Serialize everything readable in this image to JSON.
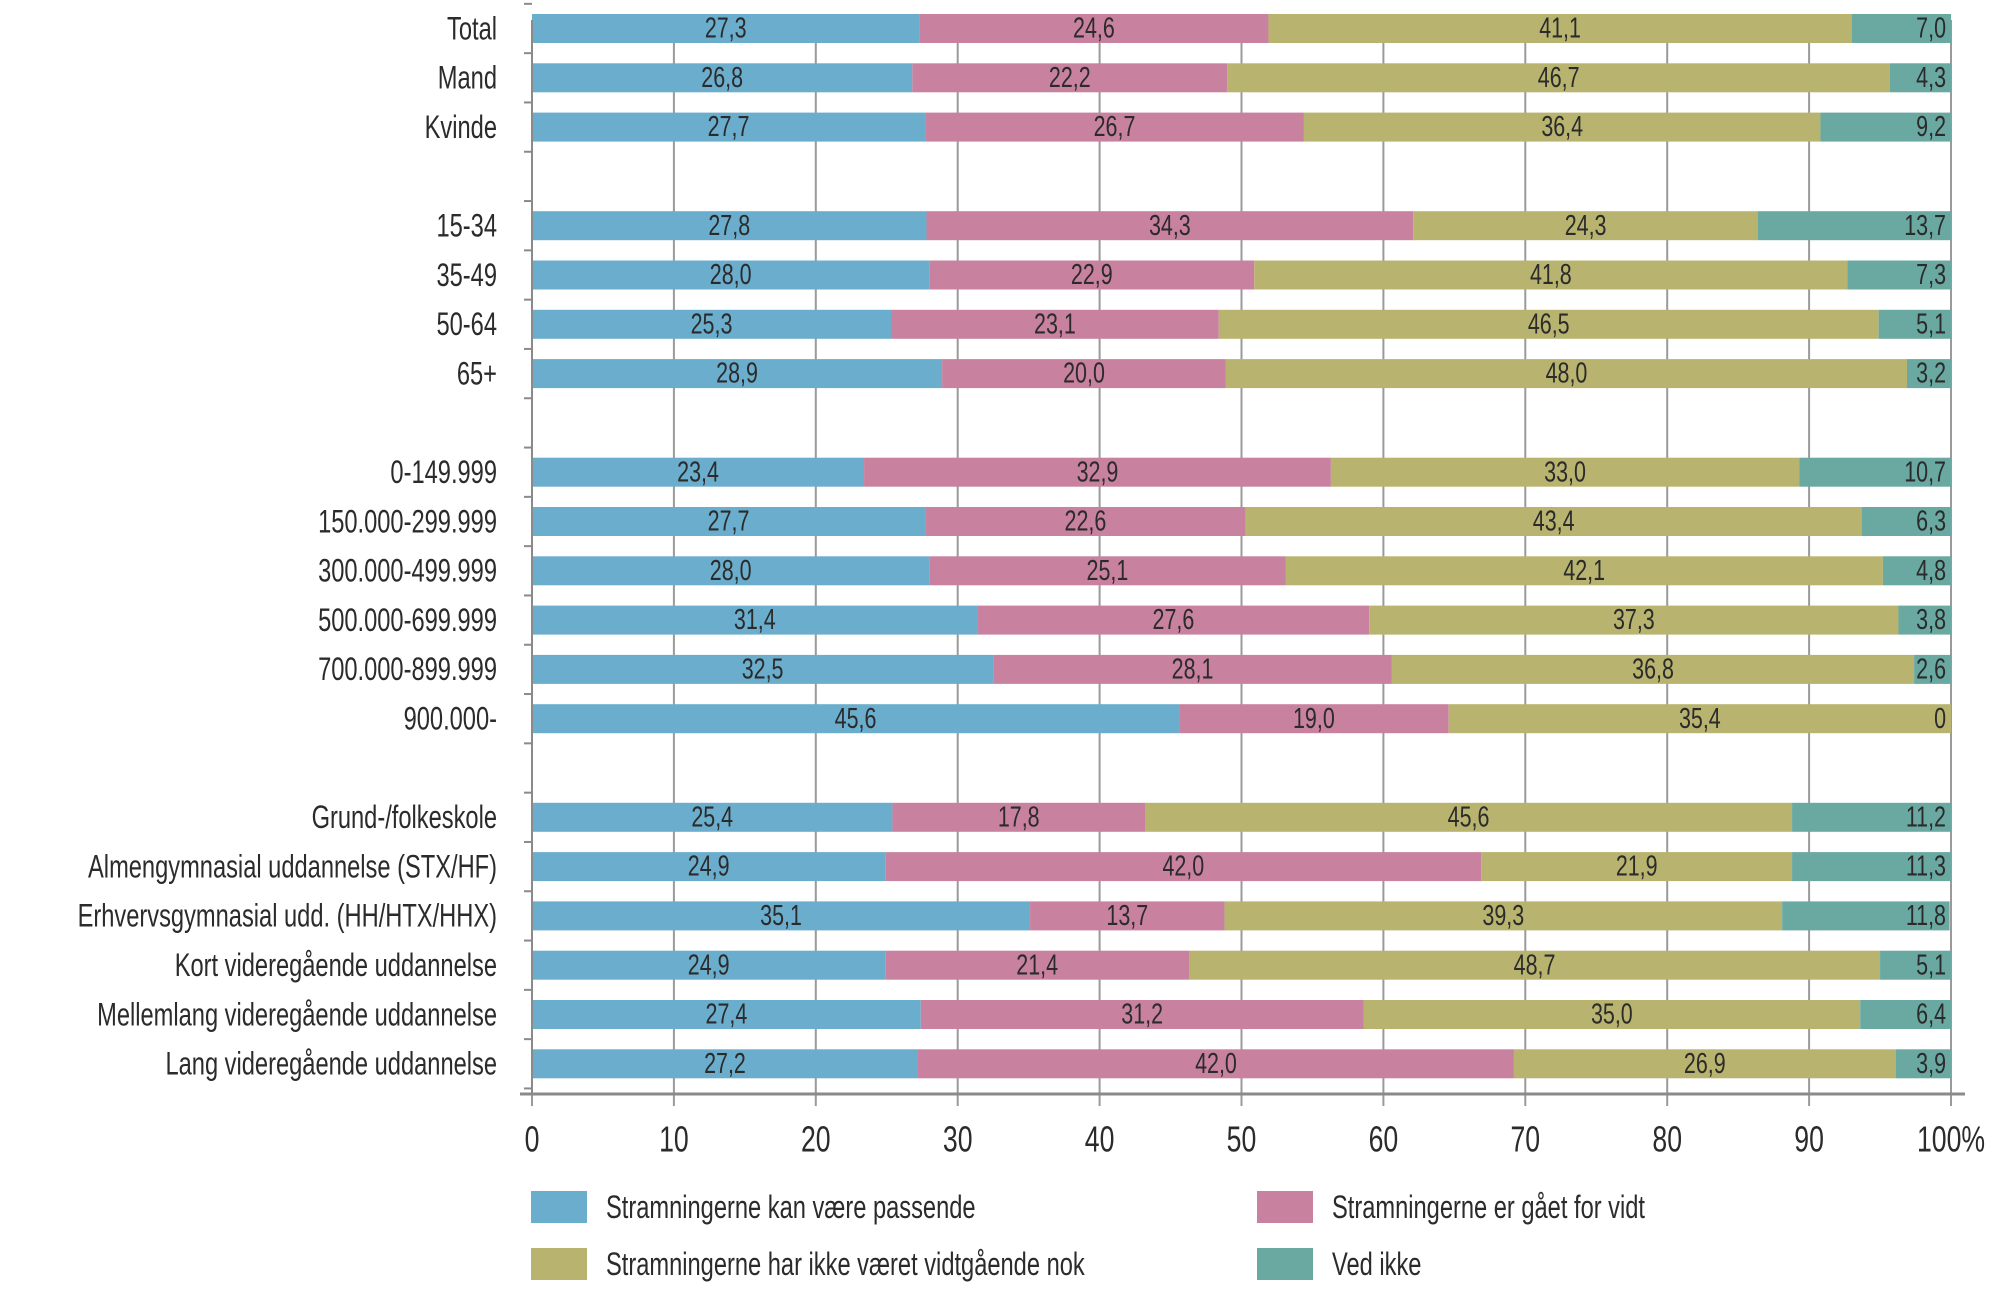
{
  "chart_data": {
    "type": "bar",
    "orientation": "horizontal",
    "stacked": true,
    "title": "",
    "xlabel": "",
    "ylabel": "",
    "xlim": [
      0,
      100
    ],
    "x_ticks": [
      "0",
      "10",
      "20",
      "30",
      "40",
      "50",
      "60",
      "70",
      "80",
      "90",
      "100%"
    ],
    "grid": true,
    "legend_position": "bottom",
    "groups": [
      [
        "Total",
        "Mand",
        "Kvinde"
      ],
      [
        "15-34",
        "35-49",
        "50-64",
        "65+"
      ],
      [
        "0-149.999",
        "150.000-299.999",
        "300.000-499.999",
        "500.000-699.999",
        "700.000-899.999",
        "900.000-"
      ],
      [
        "Grund-/folkeskole",
        "Almengymnasial uddannelse (STX/HF)",
        "Erhvervsgymnasial udd. (HH/HTX/HHX)",
        "Kort videregående uddannelse",
        "Mellemlang videregående uddannelse",
        "Lang videregående uddannelse"
      ]
    ],
    "categories": [
      "Total",
      "Mand",
      "Kvinde",
      "15-34",
      "35-49",
      "50-64",
      "65+",
      "0-149.999",
      "150.000-299.999",
      "300.000-499.999",
      "500.000-699.999",
      "700.000-899.999",
      "900.000-",
      "Grund-/folkeskole",
      "Almengymnasial uddannelse (STX/HF)",
      "Erhvervsgymnasial udd. (HH/HTX/HHX)",
      "Kort videregående uddannelse",
      "Mellemlang videregående uddannelse",
      "Lang videregående uddannelse"
    ],
    "series": [
      {
        "name": "Stramningerne kan være passende",
        "color": "#6badcc",
        "values": [
          27.3,
          26.8,
          27.7,
          27.8,
          28.0,
          25.3,
          28.9,
          23.4,
          27.7,
          28.0,
          31.4,
          32.5,
          45.6,
          25.4,
          24.9,
          35.1,
          24.9,
          27.4,
          27.2
        ],
        "labels": [
          "27,3",
          "26,8",
          "27,7",
          "27,8",
          "28,0",
          "25,3",
          "28,9",
          "23,4",
          "27,7",
          "28,0",
          "31,4",
          "32,5",
          "45,6",
          "25,4",
          "24,9",
          "35,1",
          "24,9",
          "27,4",
          "27,2"
        ]
      },
      {
        "name": "Stramningerne er gået for vidt",
        "color": "#c8829f",
        "values": [
          24.6,
          22.2,
          26.7,
          34.3,
          22.9,
          23.1,
          20.0,
          32.9,
          22.6,
          25.1,
          27.6,
          28.1,
          19.0,
          17.8,
          42.0,
          13.7,
          21.4,
          31.2,
          42.0
        ],
        "labels": [
          "24,6",
          "22,2",
          "26,7",
          "34,3",
          "22,9",
          "23,1",
          "20,0",
          "32,9",
          "22,6",
          "25,1",
          "27,6",
          "28,1",
          "19,0",
          "17,8",
          "42,0",
          "13,7",
          "21,4",
          "31,2",
          "42,0"
        ]
      },
      {
        "name": "Stramningerne har ikke været vidtgående nok",
        "color": "#b8b46f",
        "values": [
          41.1,
          46.7,
          36.4,
          24.3,
          41.8,
          46.5,
          48.0,
          33.0,
          43.4,
          42.1,
          37.3,
          36.8,
          35.4,
          45.6,
          21.9,
          39.3,
          48.7,
          35.0,
          26.9
        ],
        "labels": [
          "41,1",
          "46,7",
          "36,4",
          "24,3",
          "41,8",
          "46,5",
          "48,0",
          "33,0",
          "43,4",
          "42,1",
          "37,3",
          "36,8",
          "35,4",
          "45,6",
          "21,9",
          "39,3",
          "48,7",
          "35,0",
          "26,9"
        ]
      },
      {
        "name": "Ved ikke",
        "color": "#6aa9a1",
        "values": [
          7.0,
          4.3,
          9.2,
          13.7,
          7.3,
          5.1,
          3.2,
          10.7,
          6.3,
          4.8,
          3.8,
          2.6,
          0,
          11.2,
          11.3,
          11.8,
          5.1,
          6.4,
          3.9
        ],
        "labels": [
          "7,0",
          "4,3",
          "9,2",
          "13,7",
          "7,3",
          "5,1",
          "3,2",
          "10,7",
          "6,3",
          "4,8",
          "3,8",
          "2,6",
          "0",
          "11,2",
          "11,3",
          "11,8",
          "5,1",
          "6,4",
          "3,9"
        ]
      }
    ]
  }
}
